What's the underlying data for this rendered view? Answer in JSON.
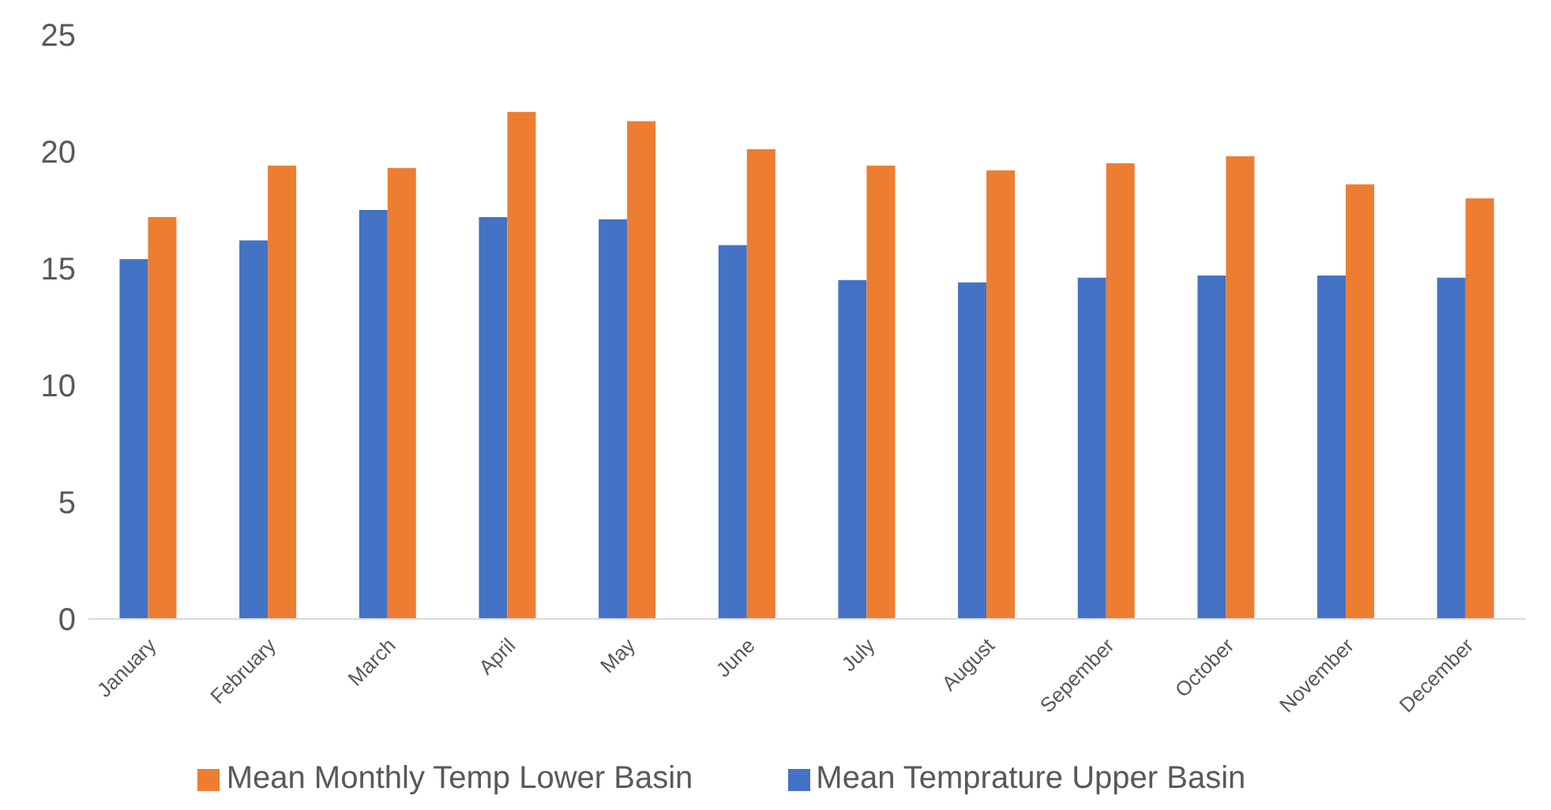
{
  "chart_data": {
    "type": "bar",
    "categories": [
      "January",
      "February",
      "March",
      "April",
      "May",
      "June",
      "July",
      "August",
      "Sepember",
      "October",
      "November",
      "December"
    ],
    "series": [
      {
        "name": "Mean Temprature Upper Basin",
        "color": "#4472c4",
        "values": [
          15.4,
          16.2,
          17.5,
          17.2,
          17.1,
          16.0,
          14.5,
          14.4,
          14.6,
          14.7,
          14.7,
          14.6
        ]
      },
      {
        "name": "Mean Monthly Temp Lower Basin",
        "color": "#ed7d31",
        "values": [
          17.2,
          19.4,
          19.3,
          21.7,
          21.3,
          20.1,
          19.4,
          19.2,
          19.5,
          19.8,
          18.6,
          18.0
        ]
      }
    ],
    "ylim": [
      0,
      25
    ],
    "yticks": [
      0,
      5,
      10,
      15,
      20,
      25
    ],
    "grid": false,
    "legend": "bottom"
  }
}
